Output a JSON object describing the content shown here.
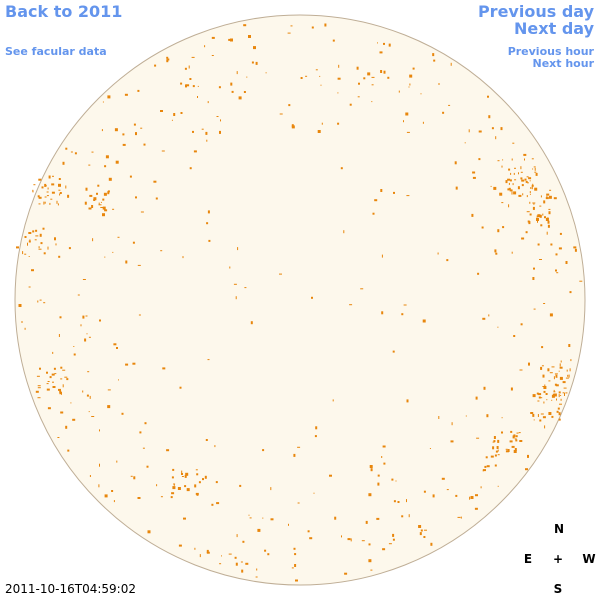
{
  "links": {
    "back": "Back to 2011",
    "facular": "See facular data",
    "previous_day": "Previous day",
    "next_day": "Next day",
    "previous_hour": "Previous hour",
    "next_hour": "Next hour"
  },
  "timestamp": "2011-10-16T04:59:02",
  "compass": {
    "north": "N",
    "east": "E",
    "center": "+",
    "west": "W",
    "south": "S"
  }
}
